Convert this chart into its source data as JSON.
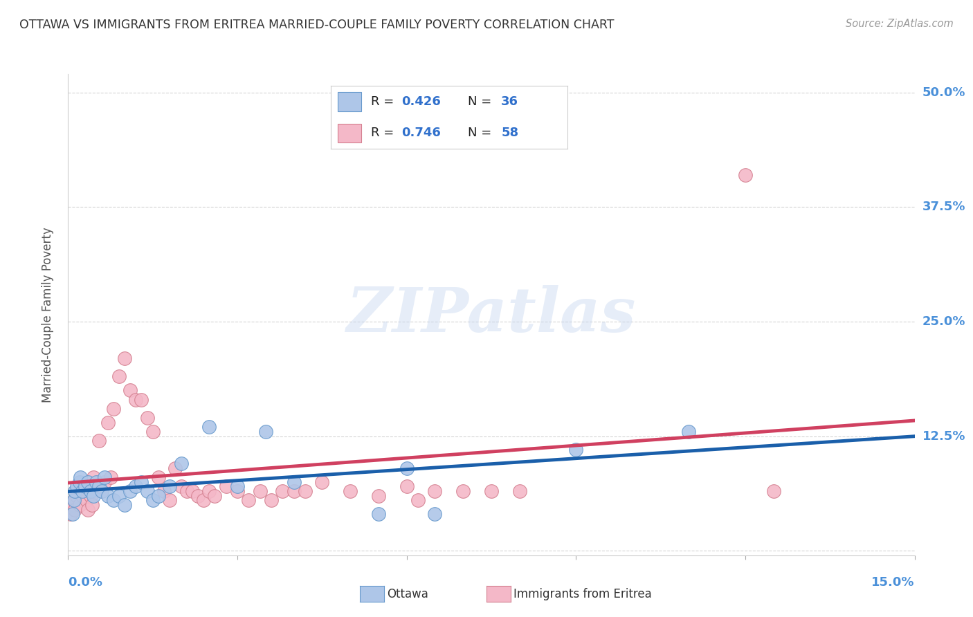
{
  "title": "OTTAWA VS IMMIGRANTS FROM ERITREA MARRIED-COUPLE FAMILY POVERTY CORRELATION CHART",
  "source": "Source: ZipAtlas.com",
  "ylabel": "Married-Couple Family Poverty",
  "xlim": [
    0,
    0.15
  ],
  "ylim": [
    -0.005,
    0.52
  ],
  "yticks": [
    0.0,
    0.125,
    0.25,
    0.375,
    0.5
  ],
  "ytick_labels": [
    "",
    "12.5%",
    "25.0%",
    "37.5%",
    "50.0%"
  ],
  "watermark": "ZIPatlas",
  "series_ottawa": {
    "label": "Ottawa",
    "color": "#aec6e8",
    "edge_color": "#6699cc",
    "R": 0.426,
    "N": 36,
    "x": [
      0.0008,
      0.001,
      0.0012,
      0.0015,
      0.002,
      0.0022,
      0.0025,
      0.003,
      0.0035,
      0.004,
      0.0045,
      0.005,
      0.0055,
      0.006,
      0.0065,
      0.007,
      0.008,
      0.009,
      0.01,
      0.011,
      0.012,
      0.013,
      0.014,
      0.015,
      0.016,
      0.018,
      0.02,
      0.025,
      0.03,
      0.035,
      0.04,
      0.055,
      0.06,
      0.065,
      0.09,
      0.11
    ],
    "y": [
      0.04,
      0.055,
      0.065,
      0.07,
      0.075,
      0.08,
      0.065,
      0.07,
      0.075,
      0.065,
      0.06,
      0.075,
      0.07,
      0.065,
      0.08,
      0.06,
      0.055,
      0.06,
      0.05,
      0.065,
      0.07,
      0.075,
      0.065,
      0.055,
      0.06,
      0.07,
      0.095,
      0.135,
      0.07,
      0.13,
      0.075,
      0.04,
      0.09,
      0.04,
      0.11,
      0.13
    ]
  },
  "series_eritrea": {
    "label": "Immigrants from Eritrea",
    "color": "#f4b8c8",
    "edge_color": "#d48090",
    "R": 0.746,
    "N": 58,
    "x": [
      0.0005,
      0.0008,
      0.001,
      0.0012,
      0.0015,
      0.002,
      0.0022,
      0.0025,
      0.003,
      0.0032,
      0.0035,
      0.004,
      0.0042,
      0.0045,
      0.005,
      0.0055,
      0.006,
      0.0065,
      0.007,
      0.0075,
      0.008,
      0.009,
      0.01,
      0.011,
      0.012,
      0.013,
      0.014,
      0.015,
      0.016,
      0.017,
      0.018,
      0.019,
      0.02,
      0.021,
      0.022,
      0.023,
      0.024,
      0.025,
      0.026,
      0.028,
      0.03,
      0.032,
      0.034,
      0.036,
      0.038,
      0.04,
      0.042,
      0.045,
      0.05,
      0.055,
      0.06,
      0.062,
      0.065,
      0.07,
      0.075,
      0.08,
      0.12,
      0.125
    ],
    "y": [
      0.04,
      0.05,
      0.055,
      0.045,
      0.06,
      0.05,
      0.065,
      0.06,
      0.07,
      0.055,
      0.045,
      0.06,
      0.05,
      0.08,
      0.07,
      0.12,
      0.065,
      0.075,
      0.14,
      0.08,
      0.155,
      0.19,
      0.21,
      0.175,
      0.165,
      0.165,
      0.145,
      0.13,
      0.08,
      0.065,
      0.055,
      0.09,
      0.07,
      0.065,
      0.065,
      0.06,
      0.055,
      0.065,
      0.06,
      0.07,
      0.065,
      0.055,
      0.065,
      0.055,
      0.065,
      0.065,
      0.065,
      0.075,
      0.065,
      0.06,
      0.07,
      0.055,
      0.065,
      0.065,
      0.065,
      0.065,
      0.41,
      0.065
    ]
  },
  "background_color": "#ffffff",
  "grid_color": "#d0d0d0",
  "title_color": "#333333",
  "axis_label_color": "#4a90d9",
  "regression_blue_color": "#1a5faa",
  "regression_pink_color": "#d04060",
  "legend_R_color": "#000000",
  "legend_val_color": "#3070cc"
}
